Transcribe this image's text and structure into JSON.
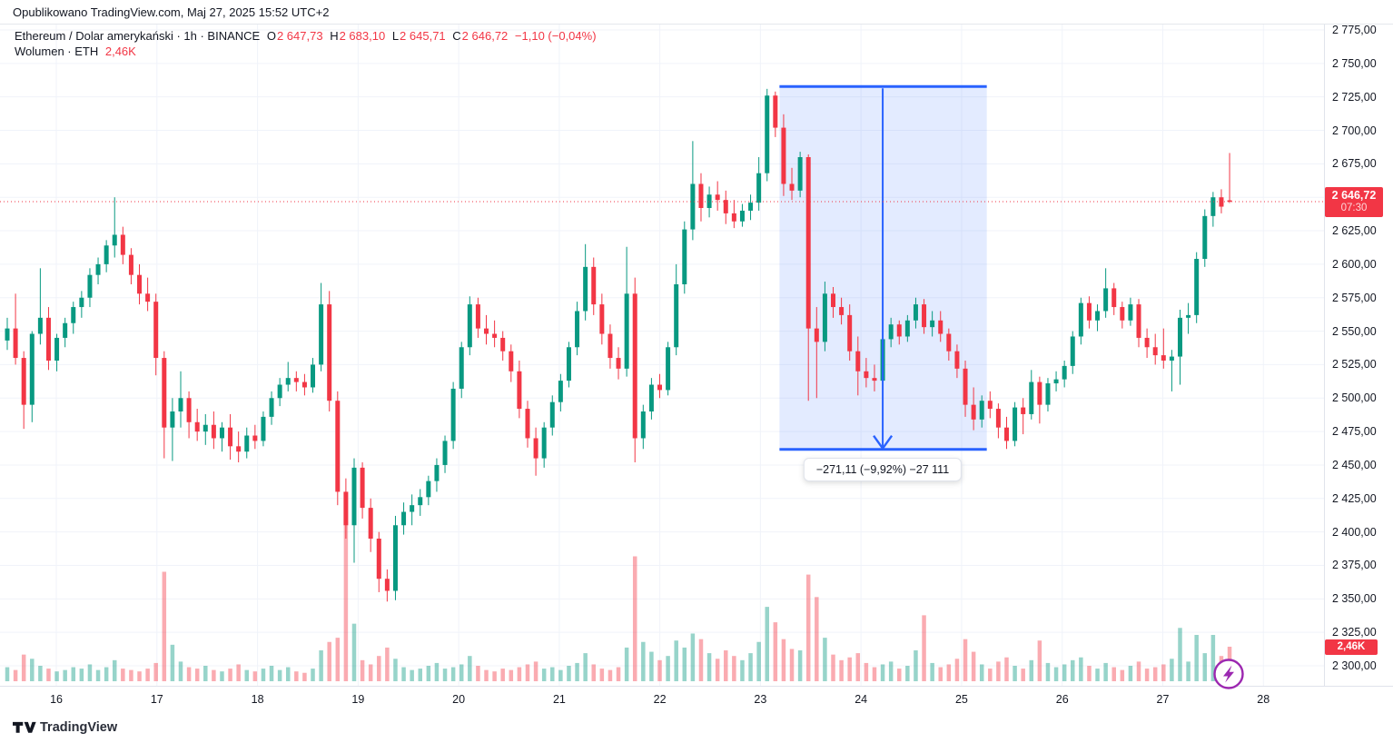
{
  "header": {
    "published": "Opublikowano TradingView.com, Maj 27, 2025 15:52 UTC+2"
  },
  "legend": {
    "title": "Ethereum / Dolar amerykański · 1h · BINANCE",
    "o_label": "O",
    "o_value": "2 647,73",
    "h_label": "H",
    "h_value": "2 683,10",
    "l_label": "L",
    "l_value": "2 645,71",
    "c_label": "C",
    "c_value": "2 646,72",
    "change": "−1,10 (−0,04%)",
    "vol_label": "Wolumen · ETH",
    "vol_value": "2,46K"
  },
  "price_badge": {
    "price": "2 646,72",
    "countdown": "07:30"
  },
  "volume_badge": {
    "value": "2,46K"
  },
  "footer": {
    "brand": "TradingView"
  },
  "colors": {
    "up": "#089981",
    "down": "#f23645",
    "accent_blue": "#2962ff",
    "grid": "#f0f3fa",
    "axis_border": "#e0e3eb",
    "text": "#131722",
    "flash_purple": "#9c27b0",
    "badge_red": "#f23645"
  },
  "chart_data": {
    "type": "candlestick",
    "symbol": "Ethereum / Dolar amerykański",
    "exchange": "BINANCE",
    "interval": "1h",
    "last_price": 2646.72,
    "last_change": -1.1,
    "last_change_pct": -0.04,
    "y_axis": {
      "min": 2300,
      "max": 2775,
      "tick_step": 25,
      "tick_values": [
        2775,
        2750,
        2725,
        2700,
        2675,
        2650,
        2625,
        2600,
        2575,
        2550,
        2525,
        2500,
        2475,
        2450,
        2425,
        2400,
        2375,
        2350,
        2325,
        2300
      ],
      "tick_labels": [
        "2 775,00",
        "2 750,00",
        "2 725,00",
        "2 700,00",
        "2 675,00",
        "2 650,00",
        "2 625,00",
        "2 600,00",
        "2 575,00",
        "2 550,00",
        "2 525,00",
        "2 500,00",
        "2 475,00",
        "2 450,00",
        "2 425,00",
        "2 400,00",
        "2 375,00",
        "2 350,00",
        "2 325,00",
        "2 300,00"
      ],
      "grid": true
    },
    "x_axis": {
      "unit": "day of May 2025",
      "day_ticks": [
        {
          "label": "16",
          "i": 5.94
        },
        {
          "label": "17",
          "i": 18.12
        },
        {
          "label": "18",
          "i": 30.3
        },
        {
          "label": "19",
          "i": 42.48
        },
        {
          "label": "20",
          "i": 54.66
        },
        {
          "label": "21",
          "i": 66.84
        },
        {
          "label": "22",
          "i": 79.01
        },
        {
          "label": "23",
          "i": 91.19
        },
        {
          "label": "24",
          "i": 103.37
        },
        {
          "label": "25",
          "i": 115.55
        },
        {
          "label": "26",
          "i": 127.73
        },
        {
          "label": "27",
          "i": 139.91
        },
        {
          "label": "28",
          "i": 152.09
        }
      ]
    },
    "measure": {
      "start_i": 93.5,
      "end_i": 118.6,
      "arrow_i": 106.0,
      "top_price": 2732.8,
      "bottom_price": 2461.7,
      "label": "−271,11 (−9,92%) −27 111"
    },
    "candles": [
      [
        2543,
        2560,
        2536,
        2552
      ],
      [
        2552,
        2578,
        2525,
        2530
      ],
      [
        2530,
        2535,
        2477,
        2495
      ],
      [
        2495,
        2550,
        2482,
        2548
      ],
      [
        2548,
        2597,
        2540,
        2560
      ],
      [
        2560,
        2568,
        2521,
        2528
      ],
      [
        2528,
        2548,
        2520,
        2545
      ],
      [
        2545,
        2560,
        2538,
        2556
      ],
      [
        2556,
        2572,
        2548,
        2568
      ],
      [
        2568,
        2580,
        2560,
        2575
      ],
      [
        2575,
        2597,
        2568,
        2592
      ],
      [
        2592,
        2605,
        2585,
        2600
      ],
      [
        2600,
        2618,
        2594,
        2614
      ],
      [
        2614,
        2650,
        2605,
        2622
      ],
      [
        2622,
        2628,
        2600,
        2607
      ],
      [
        2607,
        2612,
        2585,
        2592
      ],
      [
        2592,
        2600,
        2570,
        2578
      ],
      [
        2578,
        2590,
        2565,
        2572
      ],
      [
        2572,
        2578,
        2517,
        2530
      ],
      [
        2530,
        2535,
        2455,
        2478
      ],
      [
        2478,
        2500,
        2453,
        2490
      ],
      [
        2490,
        2520,
        2478,
        2500
      ],
      [
        2500,
        2505,
        2470,
        2482
      ],
      [
        2482,
        2492,
        2468,
        2475
      ],
      [
        2475,
        2488,
        2465,
        2480
      ],
      [
        2480,
        2490,
        2462,
        2470
      ],
      [
        2470,
        2482,
        2460,
        2478
      ],
      [
        2478,
        2488,
        2454,
        2464
      ],
      [
        2464,
        2475,
        2452,
        2460
      ],
      [
        2460,
        2478,
        2455,
        2472
      ],
      [
        2472,
        2480,
        2462,
        2468
      ],
      [
        2468,
        2490,
        2464,
        2486
      ],
      [
        2486,
        2505,
        2480,
        2500
      ],
      [
        2500,
        2515,
        2494,
        2510
      ],
      [
        2510,
        2527,
        2505,
        2515
      ],
      [
        2515,
        2520,
        2505,
        2512
      ],
      [
        2512,
        2518,
        2502,
        2508
      ],
      [
        2508,
        2530,
        2504,
        2525
      ],
      [
        2525,
        2586,
        2520,
        2570
      ],
      [
        2570,
        2580,
        2490,
        2498
      ],
      [
        2498,
        2505,
        2420,
        2430
      ],
      [
        2430,
        2440,
        2395,
        2405
      ],
      [
        2405,
        2455,
        2377,
        2448
      ],
      [
        2448,
        2452,
        2410,
        2418
      ],
      [
        2418,
        2425,
        2385,
        2395
      ],
      [
        2395,
        2400,
        2355,
        2365
      ],
      [
        2365,
        2372,
        2348,
        2356
      ],
      [
        2356,
        2412,
        2349,
        2405
      ],
      [
        2405,
        2422,
        2398,
        2415
      ],
      [
        2415,
        2428,
        2405,
        2420
      ],
      [
        2420,
        2432,
        2412,
        2426
      ],
      [
        2426,
        2442,
        2420,
        2438
      ],
      [
        2438,
        2455,
        2430,
        2450
      ],
      [
        2450,
        2472,
        2444,
        2468
      ],
      [
        2468,
        2512,
        2462,
        2507
      ],
      [
        2507,
        2542,
        2500,
        2538
      ],
      [
        2538,
        2576,
        2532,
        2570
      ],
      [
        2570,
        2575,
        2545,
        2552
      ],
      [
        2552,
        2562,
        2540,
        2548
      ],
      [
        2548,
        2558,
        2538,
        2545
      ],
      [
        2545,
        2550,
        2528,
        2535
      ],
      [
        2535,
        2540,
        2512,
        2520
      ],
      [
        2520,
        2528,
        2485,
        2492
      ],
      [
        2492,
        2498,
        2463,
        2470
      ],
      [
        2470,
        2478,
        2442,
        2455
      ],
      [
        2455,
        2482,
        2448,
        2478
      ],
      [
        2478,
        2502,
        2472,
        2497
      ],
      [
        2497,
        2518,
        2490,
        2513
      ],
      [
        2513,
        2542,
        2508,
        2538
      ],
      [
        2538,
        2572,
        2532,
        2565
      ],
      [
        2565,
        2615,
        2558,
        2598
      ],
      [
        2598,
        2605,
        2562,
        2570
      ],
      [
        2570,
        2578,
        2540,
        2548
      ],
      [
        2548,
        2555,
        2522,
        2530
      ],
      [
        2530,
        2538,
        2514,
        2522
      ],
      [
        2522,
        2613,
        2516,
        2578
      ],
      [
        2578,
        2590,
        2452,
        2470
      ],
      [
        2470,
        2495,
        2462,
        2490
      ],
      [
        2490,
        2515,
        2484,
        2510
      ],
      [
        2510,
        2518,
        2500,
        2506
      ],
      [
        2506,
        2542,
        2502,
        2538
      ],
      [
        2538,
        2600,
        2532,
        2585
      ],
      [
        2585,
        2632,
        2578,
        2626
      ],
      [
        2626,
        2692,
        2618,
        2660
      ],
      [
        2660,
        2668,
        2632,
        2642
      ],
      [
        2642,
        2658,
        2635,
        2652
      ],
      [
        2652,
        2662,
        2640,
        2648
      ],
      [
        2648,
        2655,
        2630,
        2638
      ],
      [
        2638,
        2648,
        2627,
        2632
      ],
      [
        2632,
        2645,
        2628,
        2640
      ],
      [
        2640,
        2652,
        2633,
        2646
      ],
      [
        2646,
        2680,
        2640,
        2668
      ],
      [
        2668,
        2731,
        2662,
        2726
      ],
      [
        2726,
        2729,
        2695,
        2702
      ],
      [
        2702,
        2712,
        2651,
        2660
      ],
      [
        2660,
        2672,
        2648,
        2655
      ],
      [
        2655,
        2684,
        2650,
        2680
      ],
      [
        2680,
        2682,
        2498,
        2552
      ],
      [
        2552,
        2568,
        2500,
        2542
      ],
      [
        2542,
        2587,
        2535,
        2578
      ],
      [
        2578,
        2583,
        2560,
        2568
      ],
      [
        2568,
        2575,
        2555,
        2562
      ],
      [
        2562,
        2570,
        2528,
        2535
      ],
      [
        2535,
        2546,
        2502,
        2520
      ],
      [
        2520,
        2530,
        2508,
        2515
      ],
      [
        2515,
        2525,
        2505,
        2513
      ],
      [
        2513,
        2548,
        2510,
        2544
      ],
      [
        2544,
        2560,
        2538,
        2555
      ],
      [
        2555,
        2558,
        2540,
        2546
      ],
      [
        2546,
        2562,
        2542,
        2558
      ],
      [
        2558,
        2575,
        2552,
        2570
      ],
      [
        2570,
        2574,
        2548,
        2553
      ],
      [
        2553,
        2565,
        2546,
        2558
      ],
      [
        2558,
        2565,
        2542,
        2548
      ],
      [
        2548,
        2552,
        2528,
        2535
      ],
      [
        2535,
        2540,
        2515,
        2522
      ],
      [
        2522,
        2528,
        2486,
        2495
      ],
      [
        2495,
        2508,
        2476,
        2484
      ],
      [
        2484,
        2502,
        2478,
        2498
      ],
      [
        2498,
        2505,
        2485,
        2492
      ],
      [
        2492,
        2496,
        2470,
        2478
      ],
      [
        2478,
        2486,
        2462,
        2468
      ],
      [
        2468,
        2497,
        2464,
        2493
      ],
      [
        2493,
        2500,
        2473,
        2488
      ],
      [
        2488,
        2521,
        2484,
        2512
      ],
      [
        2512,
        2516,
        2481,
        2495
      ],
      [
        2495,
        2515,
        2490,
        2511
      ],
      [
        2511,
        2520,
        2505,
        2514
      ],
      [
        2514,
        2528,
        2508,
        2524
      ],
      [
        2524,
        2550,
        2518,
        2546
      ],
      [
        2546,
        2575,
        2540,
        2571
      ],
      [
        2571,
        2576,
        2552,
        2558
      ],
      [
        2558,
        2570,
        2550,
        2565
      ],
      [
        2565,
        2597,
        2560,
        2582
      ],
      [
        2582,
        2586,
        2562,
        2568
      ],
      [
        2568,
        2572,
        2552,
        2558
      ],
      [
        2558,
        2575,
        2554,
        2570
      ],
      [
        2570,
        2574,
        2538,
        2545
      ],
      [
        2545,
        2552,
        2530,
        2538
      ],
      [
        2538,
        2548,
        2525,
        2532
      ],
      [
        2532,
        2552,
        2522,
        2528
      ],
      [
        2528,
        2536,
        2505,
        2531
      ],
      [
        2531,
        2566,
        2510,
        2560
      ],
      [
        2560,
        2571,
        2548,
        2562
      ],
      [
        2562,
        2609,
        2556,
        2604
      ],
      [
        2604,
        2641,
        2598,
        2636
      ],
      [
        2636,
        2654,
        2628,
        2650
      ],
      [
        2650,
        2656,
        2638,
        2643
      ],
      [
        2647.73,
        2683.1,
        2645.71,
        2646.72
      ]
    ],
    "volumes_k": [
      1.0,
      0.8,
      1.9,
      1.6,
      1.1,
      0.9,
      0.7,
      0.8,
      1.0,
      0.9,
      1.2,
      0.8,
      1.0,
      1.5,
      0.9,
      0.8,
      0.7,
      0.9,
      1.3,
      7.8,
      2.6,
      1.4,
      1.0,
      0.9,
      1.1,
      0.8,
      0.7,
      0.9,
      1.2,
      0.8,
      0.7,
      0.9,
      1.1,
      0.8,
      1.0,
      0.7,
      0.6,
      0.9,
      2.2,
      2.8,
      3.1,
      11.4,
      4.1,
      1.5,
      1.2,
      1.8,
      2.4,
      1.6,
      1.0,
      0.8,
      0.9,
      1.1,
      1.3,
      0.9,
      1.0,
      1.2,
      1.8,
      1.1,
      0.8,
      0.7,
      0.9,
      0.8,
      1.0,
      1.2,
      1.4,
      0.9,
      1.0,
      0.8,
      1.1,
      1.3,
      2.0,
      1.2,
      0.9,
      0.8,
      1.0,
      2.4,
      8.9,
      2.8,
      2.1,
      1.5,
      1.8,
      2.9,
      2.4,
      3.4,
      3.0,
      2.0,
      1.6,
      2.2,
      1.8,
      1.5,
      2.0,
      2.8,
      5.3,
      4.2,
      3.0,
      2.3,
      2.2,
      7.6,
      6.0,
      3.1,
      1.9,
      1.5,
      1.7,
      2.0,
      1.3,
      1.0,
      1.2,
      1.4,
      0.9,
      1.1,
      2.2,
      4.7,
      1.3,
      1.0,
      1.2,
      1.6,
      3.0,
      2.1,
      1.2,
      0.9,
      1.4,
      1.7,
      1.1,
      0.9,
      1.5,
      2.9,
      1.3,
      1.0,
      1.2,
      1.5,
      1.7,
      1.1,
      0.9,
      1.3,
      1.0,
      0.8,
      1.1,
      1.4,
      0.9,
      1.0,
      1.2,
      1.6,
      3.8,
      1.4,
      3.3,
      2.0,
      3.3,
      1.8,
      2.46
    ]
  }
}
